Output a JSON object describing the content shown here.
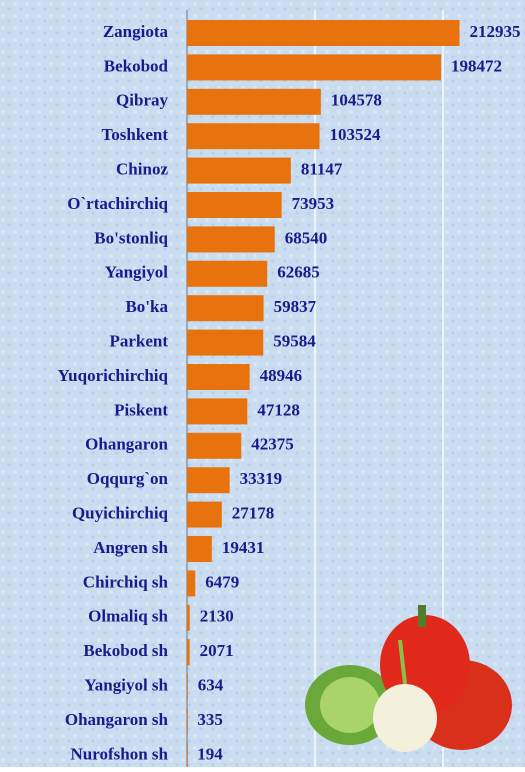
{
  "chart_data": {
    "type": "barh",
    "categories": [
      "Zangiota",
      "Bekobod",
      "Qibray",
      "Toshkent",
      "Chinoz",
      "O`rtachirchiq",
      "Bo'stonliq",
      "Yangiyol",
      "Bo'ka",
      "Parkent",
      "Yuqorichirchiq",
      "Piskent",
      "Ohangaron",
      "Oqqurg`on",
      "Quyichirchiq",
      "Angren sh",
      "Chirchiq sh",
      "Olmaliq sh",
      "Bekobod sh",
      "Yangiyol sh",
      "Ohangaron sh",
      "Nurofshon sh"
    ],
    "values": [
      212935,
      198472,
      104578,
      103524,
      81147,
      73953,
      68540,
      62685,
      59837,
      59584,
      48946,
      47128,
      42375,
      33319,
      27178,
      19431,
      6479,
      2130,
      2071,
      634,
      335,
      194
    ],
    "color": "#e8730e",
    "xlim": [
      0,
      200000
    ],
    "xticks": [
      0,
      100000,
      200000
    ],
    "grid": true
  }
}
